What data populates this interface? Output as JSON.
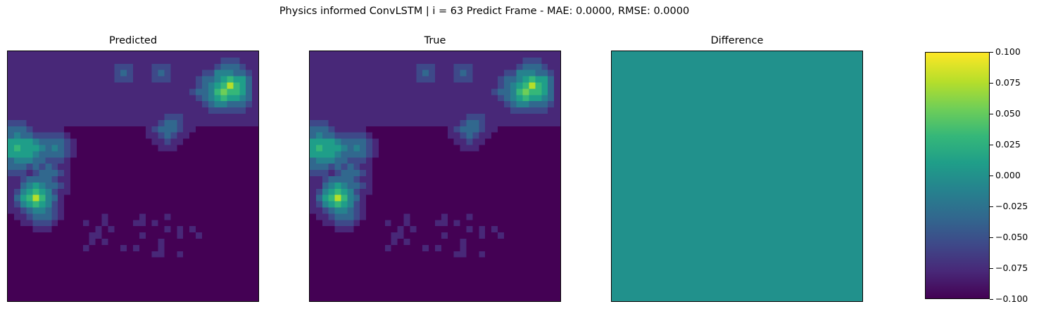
{
  "title": "Physics informed ConvLSTM | i = 63 Predict Frame - MAE: 0.0000, RMSE: 0.0000",
  "panels": [
    {
      "id": "predicted",
      "title": "Predicted"
    },
    {
      "id": "true",
      "title": "True"
    },
    {
      "id": "difference",
      "title": "Difference"
    }
  ],
  "colormap": [
    "#440154",
    "#482878",
    "#3e4989",
    "#31688e",
    "#26828e",
    "#1f9e89",
    "#35b779",
    "#6ece58",
    "#b5de2b",
    "#fde725"
  ],
  "colorbar": {
    "range": [
      -0.1,
      0.1
    ],
    "tick_labels": [
      "0.100",
      "0.075",
      "0.050",
      "0.025",
      "0.000",
      "−0.025",
      "−0.050",
      "−0.075",
      "−0.100"
    ],
    "tick_values": [
      0.1,
      0.075,
      0.05,
      0.025,
      0.0,
      -0.025,
      -0.05,
      -0.075,
      -0.1
    ]
  },
  "chart_data": {
    "type": "heatmap",
    "title": "Physics informed ConvLSTM | i = 63 Predict Frame - MAE: 0.0000, RMSE: 0.0000",
    "grid_size": [
      40,
      40
    ],
    "panels": [
      "Predicted",
      "True",
      "Difference"
    ],
    "value_range": [
      0,
      1
    ],
    "hotspots": [
      {
        "row": 5,
        "col": 35,
        "value": 0.85
      },
      {
        "row": 6,
        "col": 34,
        "value": 0.8
      },
      {
        "row": 5,
        "col": 36,
        "value": 0.7
      },
      {
        "row": 6,
        "col": 36,
        "value": 0.65
      },
      {
        "row": 4,
        "col": 34,
        "value": 0.55
      },
      {
        "row": 7,
        "col": 33,
        "value": 0.5
      },
      {
        "row": 5,
        "col": 32,
        "value": 0.45
      },
      {
        "row": 3,
        "col": 35,
        "value": 0.4
      },
      {
        "row": 7,
        "col": 36,
        "value": 0.45
      },
      {
        "row": 6,
        "col": 31,
        "value": 0.35
      },
      {
        "row": 15,
        "col": 1,
        "value": 0.7
      },
      {
        "row": 15,
        "col": 3,
        "value": 0.6
      },
      {
        "row": 16,
        "col": 2,
        "value": 0.55
      },
      {
        "row": 14,
        "col": 2,
        "value": 0.45
      },
      {
        "row": 15,
        "col": 5,
        "value": 0.45
      },
      {
        "row": 15,
        "col": 7,
        "value": 0.45
      },
      {
        "row": 13,
        "col": 1,
        "value": 0.4
      },
      {
        "row": 17,
        "col": 1,
        "value": 0.4
      },
      {
        "row": 17,
        "col": 4,
        "value": 0.35
      },
      {
        "row": 23,
        "col": 4,
        "value": 0.85
      },
      {
        "row": 22,
        "col": 4,
        "value": 0.65
      },
      {
        "row": 23,
        "col": 3,
        "value": 0.6
      },
      {
        "row": 23,
        "col": 5,
        "value": 0.55
      },
      {
        "row": 24,
        "col": 4,
        "value": 0.5
      },
      {
        "row": 22,
        "col": 5,
        "value": 0.45
      },
      {
        "row": 21,
        "col": 6,
        "value": 0.35
      },
      {
        "row": 19,
        "col": 6,
        "value": 0.35
      },
      {
        "row": 25,
        "col": 5,
        "value": 0.4
      },
      {
        "row": 12,
        "col": 25,
        "value": 0.35
      },
      {
        "row": 11,
        "col": 26,
        "value": 0.3
      },
      {
        "row": 3,
        "col": 18,
        "value": 0.3
      },
      {
        "row": 3,
        "col": 24,
        "value": 0.28
      }
    ],
    "difference_value": 0.0,
    "colorbar_range": [
      -0.1,
      0.1
    ],
    "colorbar_ticks": [
      -0.1,
      -0.075,
      -0.05,
      -0.025,
      0.0,
      0.025,
      0.05,
      0.075,
      0.1
    ]
  }
}
